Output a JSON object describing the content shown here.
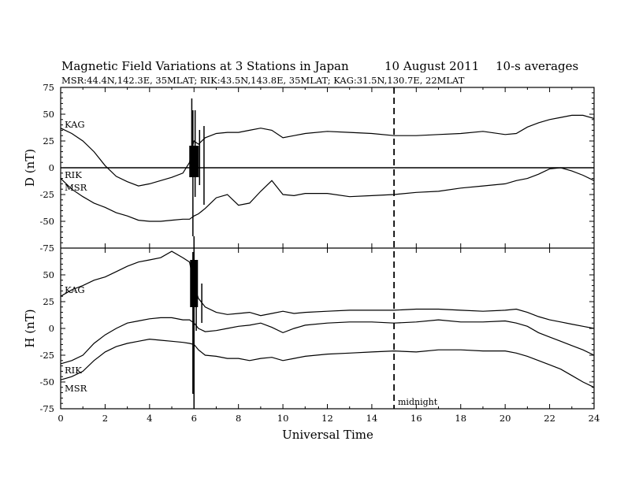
{
  "header": {
    "title": "Magnetic Field Variations at 3 Stations in Japan",
    "date": "10 August  2011",
    "avg": "10-s averages",
    "stations": "MSR:44.4N,142.3E, 35MLAT;  RIK:43.5N,143.8E, 35MLAT;  KAG:31.5N,130.7E, 22MLAT"
  },
  "chart_data": [
    {
      "type": "line",
      "panel": "D",
      "ylabel": "D (nT)",
      "xlim": [
        0,
        24
      ],
      "ylim": [
        -75,
        75
      ],
      "yticks": [
        75,
        50,
        25,
        0,
        -25,
        -50,
        -75
      ],
      "zero_line": true,
      "series": [
        {
          "name": "KAG",
          "x": [
            0,
            0.5,
            1,
            1.5,
            2,
            2.5,
            3,
            3.5,
            4,
            4.5,
            5,
            5.5,
            5.8,
            5.9,
            6,
            6.2,
            6.5,
            7,
            7.5,
            8,
            8.5,
            9,
            9.5,
            10,
            10.5,
            11,
            12,
            13,
            14,
            15,
            16,
            17,
            18,
            19,
            20,
            20.5,
            21,
            21.5,
            22,
            22.5,
            23,
            23.5,
            24
          ],
          "y": [
            37,
            32,
            25,
            15,
            2,
            -8,
            -13,
            -17,
            -15,
            -12,
            -9,
            -5,
            5,
            18,
            25,
            22,
            28,
            32,
            33,
            33,
            35,
            37,
            35,
            28,
            30,
            32,
            34,
            33,
            32,
            30,
            30,
            31,
            32,
            34,
            31,
            32,
            38,
            42,
            45,
            47,
            49,
            49,
            46
          ]
        },
        {
          "name": "RIK",
          "x": [
            0,
            24
          ],
          "y": [
            0,
            0
          ]
        },
        {
          "name": "MSR",
          "x": [
            0,
            0.5,
            1,
            1.5,
            2,
            2.5,
            3,
            3.5,
            4,
            4.5,
            5,
            5.5,
            5.8,
            6,
            6.2,
            6.5,
            7,
            7.5,
            8,
            8.5,
            9,
            9.5,
            10,
            10.5,
            11,
            12,
            13,
            14,
            15,
            16,
            17,
            18,
            19,
            20,
            20.5,
            21,
            21.5,
            22,
            22.5,
            23,
            23.5,
            24
          ],
          "y": [
            -10,
            -20,
            -27,
            -33,
            -37,
            -42,
            -45,
            -49,
            -50,
            -50,
            -49,
            -48,
            -48,
            -45,
            -43,
            -38,
            -28,
            -25,
            -35,
            -33,
            -22,
            -12,
            -25,
            -26,
            -24,
            -24,
            -27,
            -26,
            -25,
            -23,
            -22,
            -19,
            -17,
            -15,
            -12,
            -10,
            -6,
            -1,
            0,
            -3,
            -7,
            -12
          ]
        }
      ]
    },
    {
      "type": "line",
      "panel": "H",
      "ylabel": "H (nT)",
      "xlim": [
        0,
        24
      ],
      "ylim": [
        -75,
        75
      ],
      "yticks": [
        75,
        50,
        25,
        0,
        -25,
        -50,
        -75
      ],
      "series": [
        {
          "name": "KAG",
          "x": [
            0,
            0.5,
            1,
            1.5,
            2,
            2.5,
            3,
            3.5,
            4,
            4.5,
            5,
            5.5,
            5.8,
            6,
            6.2,
            6.5,
            7,
            7.5,
            8,
            8.5,
            9,
            9.5,
            10,
            10.5,
            11,
            12,
            13,
            14,
            15,
            16,
            17,
            18,
            19,
            20,
            20.5,
            21,
            21.5,
            22,
            22.5,
            23,
            23.5,
            24
          ],
          "y": [
            30,
            36,
            40,
            45,
            48,
            53,
            58,
            62,
            64,
            66,
            72,
            66,
            62,
            40,
            28,
            20,
            15,
            13,
            14,
            15,
            12,
            14,
            16,
            14,
            15,
            16,
            17,
            17,
            17,
            18,
            18,
            17,
            16,
            17,
            18,
            15,
            11,
            8,
            6,
            4,
            2,
            0
          ]
        },
        {
          "name": "RIK",
          "x": [
            0,
            0.5,
            1,
            1.5,
            2,
            2.5,
            3,
            3.5,
            4,
            4.5,
            5,
            5.5,
            5.8,
            6,
            6.2,
            6.5,
            7,
            7.5,
            8,
            8.5,
            9,
            9.5,
            10,
            10.5,
            11,
            12,
            13,
            14,
            15,
            16,
            17,
            18,
            19,
            20,
            20.5,
            21,
            21.5,
            22,
            22.5,
            23,
            23.5,
            24
          ],
          "y": [
            -33,
            -30,
            -25,
            -14,
            -6,
            0,
            5,
            7,
            9,
            10,
            10,
            8,
            8,
            5,
            0,
            -3,
            -2,
            0,
            2,
            3,
            5,
            1,
            -4,
            0,
            3,
            5,
            6,
            6,
            5,
            6,
            8,
            6,
            6,
            7,
            5,
            2,
            -4,
            -8,
            -12,
            -16,
            -20,
            -25
          ]
        },
        {
          "name": "MSR",
          "x": [
            0,
            0.5,
            1,
            1.5,
            2,
            2.5,
            3,
            3.5,
            4,
            4.5,
            5,
            5.5,
            5.8,
            6,
            6.2,
            6.5,
            7,
            7.5,
            8,
            8.5,
            9,
            9.5,
            10,
            10.5,
            11,
            12,
            13,
            14,
            15,
            16,
            17,
            18,
            19,
            20,
            20.5,
            21,
            21.5,
            22,
            22.5,
            23,
            23.5,
            24
          ],
          "y": [
            -48,
            -45,
            -40,
            -30,
            -22,
            -17,
            -14,
            -12,
            -10,
            -11,
            -12,
            -13,
            -14,
            -15,
            -20,
            -25,
            -26,
            -28,
            -28,
            -30,
            -28,
            -27,
            -30,
            -28,
            -26,
            -24,
            -23,
            -22,
            -21,
            -22,
            -20,
            -20,
            -21,
            -21,
            -23,
            -26,
            -30,
            -34,
            -38,
            -44,
            -50,
            -55
          ]
        }
      ]
    }
  ],
  "xaxis": {
    "label": "Universal Time",
    "ticks": [
      "0",
      "2",
      "4",
      "6",
      "8",
      "10",
      "12",
      "14",
      "16",
      "18",
      "20",
      "22",
      "24"
    ]
  },
  "marker": {
    "x": 15,
    "label": "midnight",
    "style": "dashed"
  }
}
